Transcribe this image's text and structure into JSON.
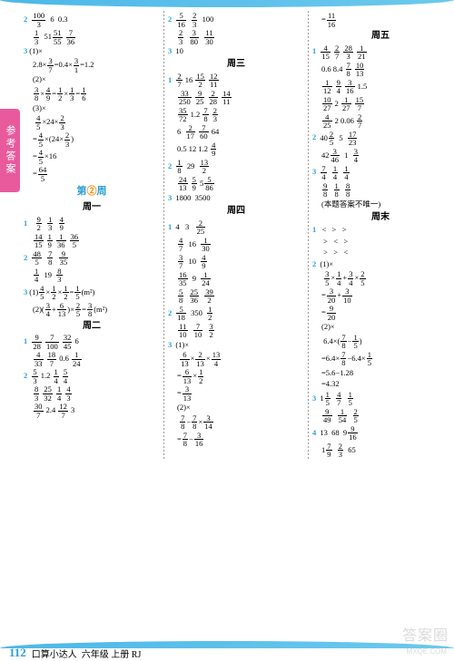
{
  "sideTab": "参考答案",
  "footer": {
    "page": "112",
    "title": "口算小达人",
    "grade": "六年级 上册 RJ"
  },
  "watermark": {
    "main": "答案圈",
    "sub": "MXQE.COM"
  },
  "col1": {
    "r1": {
      "n": "2",
      "f1t": "100",
      "f1b": "3",
      "v2": "6",
      "v3": "0.3"
    },
    "r2": {
      "f1t": "1",
      "f1b": "3",
      "v1": "51",
      "f2t": "51",
      "f2b": "55",
      "f3t": "7",
      "f3b": "36"
    },
    "r3": {
      "n": "3",
      "t": "(1)×"
    },
    "r4": {
      "v1": "2.8×",
      "f1t": "3",
      "f1b": "7",
      "v2": "=0.4×",
      "f2t": "3",
      "f2b": "1",
      "v3": "=1.2"
    },
    "r5": "(2)×",
    "r6": {
      "f1t": "3",
      "f1b": "8",
      "v1": "×",
      "f2t": "4",
      "f2b": "9",
      "v2": "=",
      "f3t": "1",
      "f3b": "2",
      "v3": "×",
      "f4t": "1",
      "f4b": "3",
      "v4": "=",
      "f5t": "1",
      "f5b": "6"
    },
    "r7": "(3)×",
    "r8": {
      "f1t": "4",
      "f1b": "5",
      "v": "×24×",
      "f2t": "2",
      "f2b": "3"
    },
    "r9": {
      "v1": "=",
      "f1t": "4",
      "f1b": "5",
      "v2": "×",
      "p1": "(",
      "v3": "24×",
      "f2t": "2",
      "f2b": "3",
      "p2": ")"
    },
    "r10": {
      "v1": "=",
      "f1t": "4",
      "f1b": "5",
      "v2": "×16"
    },
    "r11": {
      "v1": "=",
      "f1t": "64",
      "f1b": "5"
    },
    "weekHdr": {
      "pre": "第",
      "num": "②",
      "suf": "周"
    },
    "day1": "周一",
    "d1r1": {
      "n": "1",
      "f1t": "9",
      "f1b": "2",
      "f2t": "1",
      "f2b": "3",
      "f3t": "4",
      "f3b": "9"
    },
    "d1r2": {
      "f1t": "14",
      "f1b": "15",
      "f2t": "1",
      "f2b": "9",
      "f3t": "1",
      "f3b": "36",
      "f4t": "36",
      "f4b": "5"
    },
    "d1r3": {
      "n": "2",
      "f1t": "48",
      "f1b": "5",
      "f2t": "7",
      "f2b": "8",
      "f3t": "9",
      "f3b": "35"
    },
    "d1r4": {
      "f1t": "1",
      "f1b": "4",
      "v": "19",
      "f2t": "8",
      "f2b": "3"
    },
    "d1r5": {
      "n": "3",
      "t": "(1)",
      "f1t": "4",
      "f1b": "5",
      "v1": "×",
      "f2t": "1",
      "f2b": "2",
      "v2": "×",
      "f3t": "1",
      "f3b": "2",
      "v3": "=",
      "f4t": "1",
      "f4b": "5",
      "u": "(m²)"
    },
    "d1r6": {
      "t": "(2)(",
      "f1t": "3",
      "f1b": "4",
      "v1": "+",
      "f2t": "6",
      "f2b": "13",
      "v2": ")×",
      "f3t": "2",
      "f3b": "5",
      "v3": "=",
      "f4t": "3",
      "f4b": "8",
      "u": "(m²)"
    },
    "day2": "周二",
    "d2r1": {
      "n": "1",
      "f1t": "9",
      "f1b": "28",
      "f2t": "7",
      "f2b": "100",
      "f3t": "32",
      "f3b": "45",
      "v": "6"
    },
    "d2r2": {
      "f1t": "4",
      "f1b": "33",
      "f2t": "18",
      "f2b": "7",
      "v": "0.6",
      "f3t": "1",
      "f3b": "24"
    },
    "d2r3": {
      "n": "2",
      "f1t": "5",
      "f1b": "3",
      "v1": "1.2",
      "f2t": "1",
      "f2b": "4",
      "f3t": "5",
      "f3b": "4"
    },
    "d2r4": {
      "f1t": "8",
      "f1b": "3",
      "f2t": "25",
      "f2b": "32",
      "f3t": "1",
      "f3b": "4",
      "f4t": "4",
      "f4b": "3"
    },
    "d2r5": {
      "f1t": "30",
      "f1b": "7",
      "v": "2.4",
      "f2t": "12",
      "f2b": "7",
      "v2": "3"
    }
  },
  "col2": {
    "r1": {
      "n": "2",
      "f1t": "5",
      "f1b": "16",
      "f2t": "2",
      "f2b": "3",
      "v": "100"
    },
    "r2": {
      "f1t": "2",
      "f1b": "3",
      "f2t": "3",
      "f2b": "80",
      "f3t": "11",
      "f3b": "30"
    },
    "r3": {
      "n": "3",
      "v": "10"
    },
    "day3": "周三",
    "d3r1": {
      "n": "1",
      "f1t": "2",
      "f1b": "7",
      "v": "16",
      "f2t": "15",
      "f2b": "2",
      "f3t": "12",
      "f3b": "11"
    },
    "d3r2": {
      "f1t": "33",
      "f1b": "250",
      "f2t": "9",
      "f2b": "25",
      "f3t": "2",
      "f3b": "28",
      "f4t": "14",
      "f4b": "11"
    },
    "d3r3": {
      "f1t": "35",
      "f1b": "72",
      "v": "1.2",
      "f2t": "7",
      "f2b": "8",
      "f3t": "2",
      "f3b": "3"
    },
    "d3r4": {
      "v": "6",
      "f1t": "2",
      "f1b": "17",
      "f2t": "7",
      "f2b": "60",
      "v2": "64"
    },
    "d3r5": {
      "v1": "0.5",
      "v2": "12",
      "v3": "1.2",
      "f1t": "4",
      "f1b": "9"
    },
    "d3r6": {
      "n": "2",
      "f1t": "1",
      "f1b": "8",
      "v": "29",
      "f2t": "13",
      "f2b": "2"
    },
    "d3r7": {
      "f1t": "24",
      "f1b": "13",
      "f2t": "5",
      "f2b": "9",
      "v": "5",
      "f3t": "5",
      "f3b": "86"
    },
    "d3r8": {
      "n": "3",
      "v1": "1800",
      "v2": "3500"
    },
    "day4": "周四",
    "d4r1": {
      "n": "1",
      "v1": "4",
      "v2": "3",
      "f1t": "2",
      "f1b": "25"
    },
    "d4r2": {
      "f1t": "4",
      "f1b": "7",
      "v": "16",
      "f2t": "1",
      "f2b": "30"
    },
    "d4r3": {
      "f1t": "3",
      "f1b": "7",
      "v": "10",
      "f2t": "4",
      "f2b": "9"
    },
    "d4r4": {
      "f1t": "16",
      "f1b": "35",
      "v": "9",
      "f2t": "1",
      "f2b": "24"
    },
    "d4r5": {
      "f1t": "5",
      "f1b": "8",
      "f2t": "25",
      "f2b": "36",
      "f3t": "39",
      "f3b": "2"
    },
    "d4r6": {
      "n": "2",
      "f1t": "5",
      "f1b": "18",
      "v": "350",
      "f2t": "1",
      "f2b": "2"
    },
    "d4r7": {
      "f1t": "11",
      "f1b": "10",
      "f2t": "7",
      "f2b": "10",
      "f3t": "3",
      "f3b": "2"
    },
    "d4r8": {
      "n": "3",
      "t": "(1)×"
    },
    "d4r9": {
      "f1t": "6",
      "f1b": "13",
      "v1": "×",
      "f2t": "2",
      "f2b": "13",
      "v2": "×",
      "f3t": "13",
      "f3b": "4"
    },
    "d4r10": {
      "v1": "=",
      "f1t": "6",
      "f1b": "13",
      "v2": "×",
      "f2t": "1",
      "f2b": "2"
    },
    "d4r11": {
      "v1": "=",
      "f1t": "3",
      "f1b": "13"
    },
    "d4r12": "(2)×",
    "d4r13": {
      "f1t": "7",
      "f1b": "8",
      "v1": "−",
      "f2t": "7",
      "f2b": "8",
      "v2": "×",
      "f3t": "3",
      "f3b": "14"
    },
    "d4r14": {
      "v1": "=",
      "f1t": "7",
      "f1b": "8",
      "v2": "−",
      "f2t": "3",
      "f2b": "16"
    }
  },
  "col3": {
    "r1": {
      "v": "=",
      "f1t": "11",
      "f1b": "16"
    },
    "day5": "周五",
    "d5r1": {
      "n": "1",
      "f1t": "4",
      "f1b": "15",
      "f2t": "2",
      "f2b": "7",
      "f3t": "28",
      "f3b": "3",
      "f4t": "1",
      "f4b": "21"
    },
    "d5r2": {
      "v1": "0.6",
      "v2": "8.4",
      "f1t": "7",
      "f1b": "8",
      "f2t": "10",
      "f2b": "13"
    },
    "d5r3": {
      "f1t": "1",
      "f1b": "12",
      "f2t": "9",
      "f2b": "4",
      "f3t": "3",
      "f3b": "16",
      "v": "1.5"
    },
    "d5r4": {
      "f1t": "10",
      "f1b": "27",
      "v": "2",
      "f2t": "1",
      "f2b": "27",
      "f3t": "15",
      "f3b": "7"
    },
    "d5r5": {
      "f1t": "4",
      "f1b": "25",
      "v1": "2",
      "v2": "0.06",
      "f2t": "2",
      "f2b": "7"
    },
    "d5r6": {
      "n": "2",
      "v1": "40",
      "f1t": "2",
      "f1b": "5",
      "v2": "5",
      "f2t": "17",
      "f2b": "23"
    },
    "d5r7": {
      "v1": "42",
      "f1t": "3",
      "f1b": "46",
      "v2": "1",
      "f2t": "3",
      "f2b": "4"
    },
    "d5r8": {
      "n": "3",
      "f1t": "7",
      "f1b": "4",
      "f2t": "1",
      "f2b": "4",
      "f3t": "1",
      "f3b": "4"
    },
    "d5r9": {
      "f1t": "9",
      "f1b": "8",
      "f2t": "1",
      "f2b": "8",
      "f3t": "8",
      "f3b": "8"
    },
    "d5r10": "(本题答案不唯一)",
    "day6": "周末",
    "d6r1": {
      "n": "1",
      "s1": "<",
      "s2": ">",
      "s3": ">"
    },
    "d6r2": {
      "s1": ">",
      "s2": "<",
      "s3": ">"
    },
    "d6r3": {
      "s1": ">",
      "s2": ">",
      "s3": "<"
    },
    "d6r4": {
      "n": "2",
      "t": "(1)×"
    },
    "d6r5": {
      "f1t": "3",
      "f1b": "5",
      "v1": "×",
      "f2t": "1",
      "f2b": "4",
      "v2": "+",
      "f3t": "3",
      "f3b": "4",
      "v3": "×",
      "f4t": "2",
      "f4b": "5"
    },
    "d6r6": {
      "v1": "=",
      "f1t": "3",
      "f1b": "20",
      "v2": "+",
      "f2t": "3",
      "f2b": "10"
    },
    "d6r7": {
      "v1": "=",
      "f1t": "9",
      "f1b": "20"
    },
    "d6r8": "(2)×",
    "d6r9": {
      "v1": "6.4×",
      "p1": "(",
      "f1t": "7",
      "f1b": "8",
      "v2": "−",
      "f2t": "1",
      "f2b": "5",
      "p2": ")"
    },
    "d6r10": {
      "v1": "=6.4×",
      "f1t": "7",
      "f1b": "8",
      "v2": "−6.4×",
      "f2t": "1",
      "f2b": "5"
    },
    "d6r11": "=5.6−1.28",
    "d6r12": "=4.32",
    "d6r13": {
      "n": "3",
      "v1": "1",
      "f1t": "1",
      "f1b": "5",
      "f2t": "4",
      "f2b": "7",
      "f3t": "1",
      "f3b": "5"
    },
    "d6r14": {
      "f1t": "9",
      "f1b": "49",
      "f2t": "1",
      "f2b": "54",
      "f3t": "2",
      "f3b": "5"
    },
    "d6r15": {
      "n": "4",
      "v1": "13",
      "v2": "68",
      "v3": "9",
      "f1t": "9",
      "f1b": "16"
    },
    "d6r16": {
      "v1": "1",
      "f1t": "7",
      "f1b": "9",
      "f2t": "2",
      "f2b": "3",
      "v2": "65"
    }
  }
}
